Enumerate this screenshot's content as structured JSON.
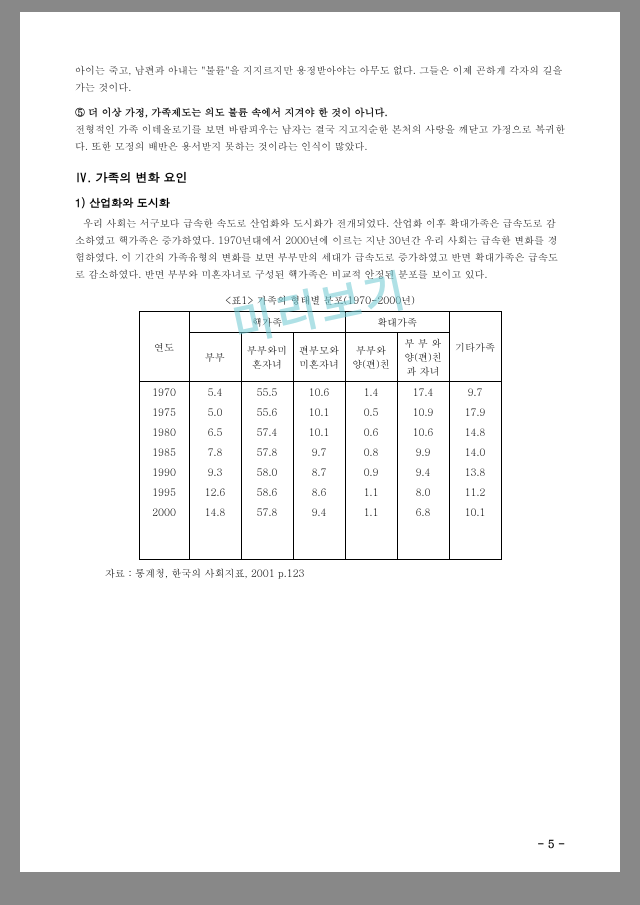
{
  "paragraphs": {
    "p1": "아이는 죽고, 남편과 아내는 \"불륜\"을 지지르지만 용정받아야는 아무도 없다. 그들은 이제 곤하게 각자의 길을 가는 것이다.",
    "p2_num": "⑤",
    "p2_bold": "더 이상 가정, 가족제도는 의도 불륜 속에서 지겨야 한 것이 아니다.",
    "p2_body": "전형적인 가족 이데올로기를 보면 바람피우는 남자는 결국 지고지순한 본처의 사랑을 깨닫고 가정으로 복귀한다. 또한 모정의 배반은 용서받지 못하는 것이라는 인식이 많았다.",
    "section4": "Ⅳ. 가족의 변화 요인",
    "sub1": "1) 산업화와 도시화",
    "p3": "우리 사회는 서구보다 급속한 속도로 산업화와 도시화가 전개되었다. 산업화 이후 확대가족은 급속도로 감소하였고 핵가족은 증가하였다. 1970년대에서 2000년에 이르는 지난 30년간 우리 사회는 급속한 변화를 경험하였다. 이 기간의 가족유형의 변화를 보면 부부만의 세대가 급속도로 증가하였고 반면 확대가족은 급속도로 감소하였다. 반면 부부와 미혼자녀로 구성된 핵가족은 비교적 안정된 분포를 보이고 있다."
  },
  "table": {
    "caption": "<표1> 가족의 형태별 분포(1970-2000년)",
    "header_groups": {
      "g1": "핵가족",
      "g2": "확대가족"
    },
    "columns": {
      "c0": "연도",
      "c1": "부부",
      "c2": "부부와미혼자녀",
      "c3": "편부모와 미혼자녀",
      "c4": "부부와 양(편)친",
      "c5": "부 부 와 양(편)친 과 자녀",
      "c6": "기타가족"
    },
    "rows": [
      {
        "y": "1970",
        "a": "5.4",
        "b": "55.5",
        "c": "10.6",
        "d": "1.4",
        "e": "17.4",
        "f": "9.7"
      },
      {
        "y": "1975",
        "a": "5.0",
        "b": "55.6",
        "c": "10.1",
        "d": "0.5",
        "e": "10.9",
        "f": "17.9"
      },
      {
        "y": "1980",
        "a": "6.5",
        "b": "57.4",
        "c": "10.1",
        "d": "0.6",
        "e": "10.6",
        "f": "14.8"
      },
      {
        "y": "1985",
        "a": "7.8",
        "b": "57.8",
        "c": "9.7",
        "d": "0.8",
        "e": "9.9",
        "f": "14.0"
      },
      {
        "y": "1990",
        "a": "9.3",
        "b": "58.0",
        "c": "8.7",
        "d": "0.9",
        "e": "9.4",
        "f": "13.8"
      },
      {
        "y": "1995",
        "a": "12.6",
        "b": "58.6",
        "c": "8.6",
        "d": "1.1",
        "e": "8.0",
        "f": "11.2"
      },
      {
        "y": "2000",
        "a": "14.8",
        "b": "57.8",
        "c": "9.4",
        "d": "1.1",
        "e": "6.8",
        "f": "10.1"
      }
    ],
    "source": "자료 : 통계청, 한국의 사회지표, 2001 p.123"
  },
  "page_number": "- 5 -",
  "watermark": "미리보기"
}
